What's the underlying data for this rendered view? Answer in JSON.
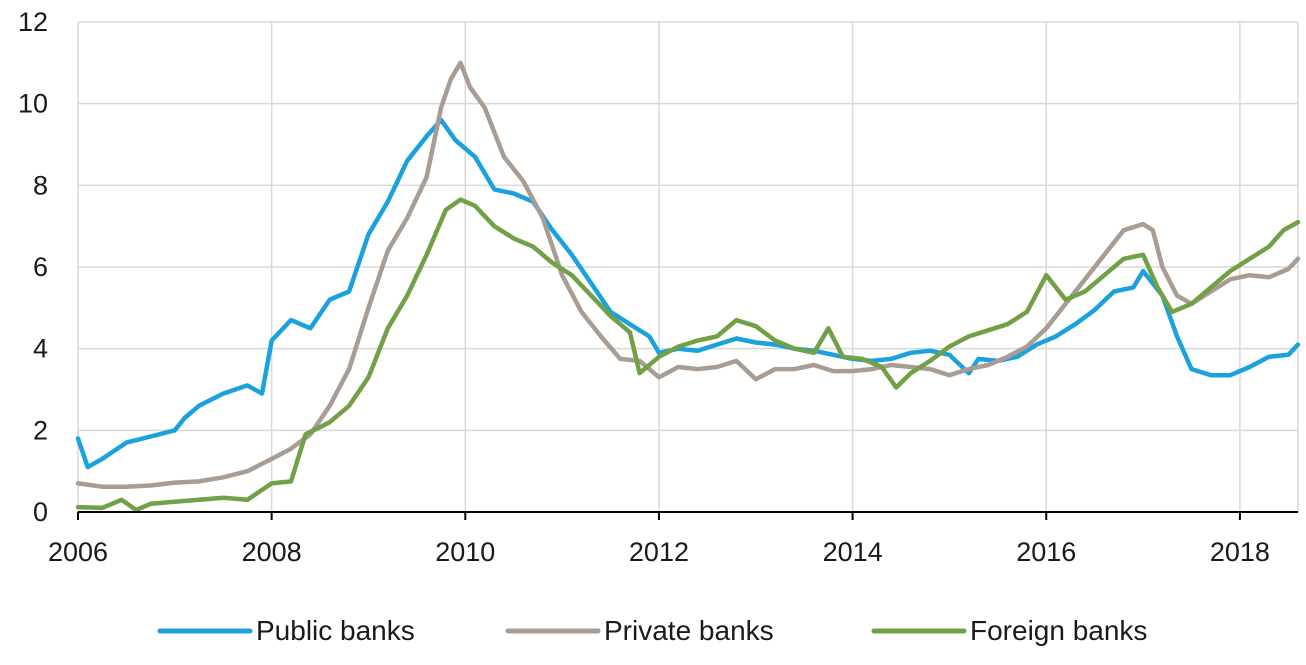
{
  "chart_data": {
    "type": "line",
    "title": "",
    "xlabel": "",
    "ylabel": "",
    "xlim": [
      2006,
      2018.6
    ],
    "ylim": [
      0,
      12
    ],
    "x_ticks": [
      "2006",
      "2008",
      "2010",
      "2012",
      "2014",
      "2016",
      "2018"
    ],
    "y_ticks": [
      "0",
      "2",
      "4",
      "6",
      "8",
      "10",
      "12"
    ],
    "grid": true,
    "legend_position": "bottom",
    "series": [
      {
        "name": "Public banks",
        "color": "#1ba1dc",
        "points": [
          [
            2006.0,
            1.8
          ],
          [
            2006.1,
            1.1
          ],
          [
            2006.25,
            1.3
          ],
          [
            2006.5,
            1.7
          ],
          [
            2006.75,
            1.85
          ],
          [
            2007.0,
            2.0
          ],
          [
            2007.1,
            2.3
          ],
          [
            2007.25,
            2.6
          ],
          [
            2007.5,
            2.9
          ],
          [
            2007.75,
            3.1
          ],
          [
            2007.9,
            2.9
          ],
          [
            2008.0,
            4.2
          ],
          [
            2008.2,
            4.7
          ],
          [
            2008.4,
            4.5
          ],
          [
            2008.6,
            5.2
          ],
          [
            2008.8,
            5.4
          ],
          [
            2009.0,
            6.8
          ],
          [
            2009.2,
            7.6
          ],
          [
            2009.4,
            8.6
          ],
          [
            2009.6,
            9.2
          ],
          [
            2009.75,
            9.6
          ],
          [
            2009.9,
            9.1
          ],
          [
            2010.1,
            8.7
          ],
          [
            2010.3,
            7.9
          ],
          [
            2010.5,
            7.8
          ],
          [
            2010.7,
            7.6
          ],
          [
            2010.9,
            6.9
          ],
          [
            2011.1,
            6.3
          ],
          [
            2011.3,
            5.6
          ],
          [
            2011.5,
            4.9
          ],
          [
            2011.7,
            4.6
          ],
          [
            2011.9,
            4.3
          ],
          [
            2012.0,
            3.9
          ],
          [
            2012.2,
            4.0
          ],
          [
            2012.4,
            3.95
          ],
          [
            2012.6,
            4.1
          ],
          [
            2012.8,
            4.25
          ],
          [
            2013.0,
            4.15
          ],
          [
            2013.2,
            4.1
          ],
          [
            2013.4,
            4.0
          ],
          [
            2013.6,
            3.95
          ],
          [
            2013.8,
            3.85
          ],
          [
            2014.0,
            3.75
          ],
          [
            2014.2,
            3.7
          ],
          [
            2014.4,
            3.75
          ],
          [
            2014.6,
            3.9
          ],
          [
            2014.8,
            3.95
          ],
          [
            2015.0,
            3.85
          ],
          [
            2015.2,
            3.4
          ],
          [
            2015.3,
            3.75
          ],
          [
            2015.5,
            3.7
          ],
          [
            2015.7,
            3.8
          ],
          [
            2015.9,
            4.1
          ],
          [
            2016.1,
            4.3
          ],
          [
            2016.3,
            4.6
          ],
          [
            2016.5,
            4.95
          ],
          [
            2016.7,
            5.4
          ],
          [
            2016.9,
            5.5
          ],
          [
            2017.0,
            5.9
          ],
          [
            2017.2,
            5.3
          ],
          [
            2017.35,
            4.3
          ],
          [
            2017.5,
            3.5
          ],
          [
            2017.7,
            3.35
          ],
          [
            2017.9,
            3.35
          ],
          [
            2018.1,
            3.55
          ],
          [
            2018.3,
            3.8
          ],
          [
            2018.5,
            3.85
          ],
          [
            2018.6,
            4.1
          ]
        ]
      },
      {
        "name": "Private banks",
        "color": "#a89c93",
        "points": [
          [
            2006.0,
            0.7
          ],
          [
            2006.25,
            0.62
          ],
          [
            2006.5,
            0.62
          ],
          [
            2006.75,
            0.65
          ],
          [
            2007.0,
            0.72
          ],
          [
            2007.25,
            0.75
          ],
          [
            2007.5,
            0.85
          ],
          [
            2007.75,
            1.0
          ],
          [
            2008.0,
            1.3
          ],
          [
            2008.2,
            1.55
          ],
          [
            2008.4,
            1.9
          ],
          [
            2008.6,
            2.6
          ],
          [
            2008.8,
            3.5
          ],
          [
            2009.0,
            5.0
          ],
          [
            2009.2,
            6.4
          ],
          [
            2009.4,
            7.2
          ],
          [
            2009.6,
            8.2
          ],
          [
            2009.75,
            9.9
          ],
          [
            2009.85,
            10.6
          ],
          [
            2009.95,
            11.0
          ],
          [
            2010.05,
            10.4
          ],
          [
            2010.2,
            9.9
          ],
          [
            2010.4,
            8.7
          ],
          [
            2010.6,
            8.1
          ],
          [
            2010.8,
            7.2
          ],
          [
            2011.0,
            5.8
          ],
          [
            2011.2,
            4.9
          ],
          [
            2011.4,
            4.3
          ],
          [
            2011.6,
            3.75
          ],
          [
            2011.8,
            3.7
          ],
          [
            2012.0,
            3.3
          ],
          [
            2012.2,
            3.55
          ],
          [
            2012.4,
            3.5
          ],
          [
            2012.6,
            3.55
          ],
          [
            2012.8,
            3.7
          ],
          [
            2013.0,
            3.25
          ],
          [
            2013.2,
            3.5
          ],
          [
            2013.4,
            3.5
          ],
          [
            2013.6,
            3.6
          ],
          [
            2013.8,
            3.45
          ],
          [
            2014.0,
            3.45
          ],
          [
            2014.2,
            3.5
          ],
          [
            2014.4,
            3.6
          ],
          [
            2014.6,
            3.55
          ],
          [
            2014.8,
            3.5
          ],
          [
            2015.0,
            3.35
          ],
          [
            2015.2,
            3.5
          ],
          [
            2015.4,
            3.6
          ],
          [
            2015.6,
            3.8
          ],
          [
            2015.8,
            4.05
          ],
          [
            2016.0,
            4.5
          ],
          [
            2016.2,
            5.1
          ],
          [
            2016.4,
            5.7
          ],
          [
            2016.6,
            6.3
          ],
          [
            2016.8,
            6.9
          ],
          [
            2017.0,
            7.05
          ],
          [
            2017.1,
            6.9
          ],
          [
            2017.2,
            6.0
          ],
          [
            2017.35,
            5.3
          ],
          [
            2017.5,
            5.1
          ],
          [
            2017.7,
            5.4
          ],
          [
            2017.9,
            5.7
          ],
          [
            2018.1,
            5.8
          ],
          [
            2018.3,
            5.75
          ],
          [
            2018.5,
            5.95
          ],
          [
            2018.6,
            6.2
          ]
        ]
      },
      {
        "name": "Foreign banks",
        "color": "#71a046",
        "points": [
          [
            2006.0,
            0.12
          ],
          [
            2006.25,
            0.1
          ],
          [
            2006.45,
            0.3
          ],
          [
            2006.6,
            0.05
          ],
          [
            2006.75,
            0.2
          ],
          [
            2007.0,
            0.25
          ],
          [
            2007.25,
            0.3
          ],
          [
            2007.5,
            0.35
          ],
          [
            2007.75,
            0.3
          ],
          [
            2008.0,
            0.7
          ],
          [
            2008.2,
            0.75
          ],
          [
            2008.35,
            1.9
          ],
          [
            2008.6,
            2.2
          ],
          [
            2008.8,
            2.6
          ],
          [
            2009.0,
            3.3
          ],
          [
            2009.2,
            4.5
          ],
          [
            2009.4,
            5.3
          ],
          [
            2009.6,
            6.3
          ],
          [
            2009.8,
            7.4
          ],
          [
            2009.95,
            7.65
          ],
          [
            2010.1,
            7.5
          ],
          [
            2010.3,
            7.0
          ],
          [
            2010.5,
            6.7
          ],
          [
            2010.7,
            6.5
          ],
          [
            2010.9,
            6.1
          ],
          [
            2011.1,
            5.8
          ],
          [
            2011.3,
            5.3
          ],
          [
            2011.5,
            4.8
          ],
          [
            2011.7,
            4.4
          ],
          [
            2011.8,
            3.4
          ],
          [
            2012.0,
            3.8
          ],
          [
            2012.2,
            4.05
          ],
          [
            2012.4,
            4.2
          ],
          [
            2012.6,
            4.3
          ],
          [
            2012.8,
            4.7
          ],
          [
            2013.0,
            4.55
          ],
          [
            2013.2,
            4.2
          ],
          [
            2013.4,
            4.0
          ],
          [
            2013.6,
            3.9
          ],
          [
            2013.75,
            4.5
          ],
          [
            2013.9,
            3.8
          ],
          [
            2014.1,
            3.75
          ],
          [
            2014.3,
            3.55
          ],
          [
            2014.45,
            3.05
          ],
          [
            2014.6,
            3.4
          ],
          [
            2014.8,
            3.7
          ],
          [
            2015.0,
            4.05
          ],
          [
            2015.2,
            4.3
          ],
          [
            2015.4,
            4.45
          ],
          [
            2015.6,
            4.6
          ],
          [
            2015.8,
            4.9
          ],
          [
            2016.0,
            5.8
          ],
          [
            2016.2,
            5.2
          ],
          [
            2016.4,
            5.4
          ],
          [
            2016.6,
            5.8
          ],
          [
            2016.8,
            6.2
          ],
          [
            2017.0,
            6.3
          ],
          [
            2017.15,
            5.5
          ],
          [
            2017.3,
            4.9
          ],
          [
            2017.5,
            5.1
          ],
          [
            2017.7,
            5.5
          ],
          [
            2017.9,
            5.9
          ],
          [
            2018.1,
            6.2
          ],
          [
            2018.3,
            6.5
          ],
          [
            2018.45,
            6.9
          ],
          [
            2018.6,
            7.1
          ]
        ]
      }
    ]
  }
}
